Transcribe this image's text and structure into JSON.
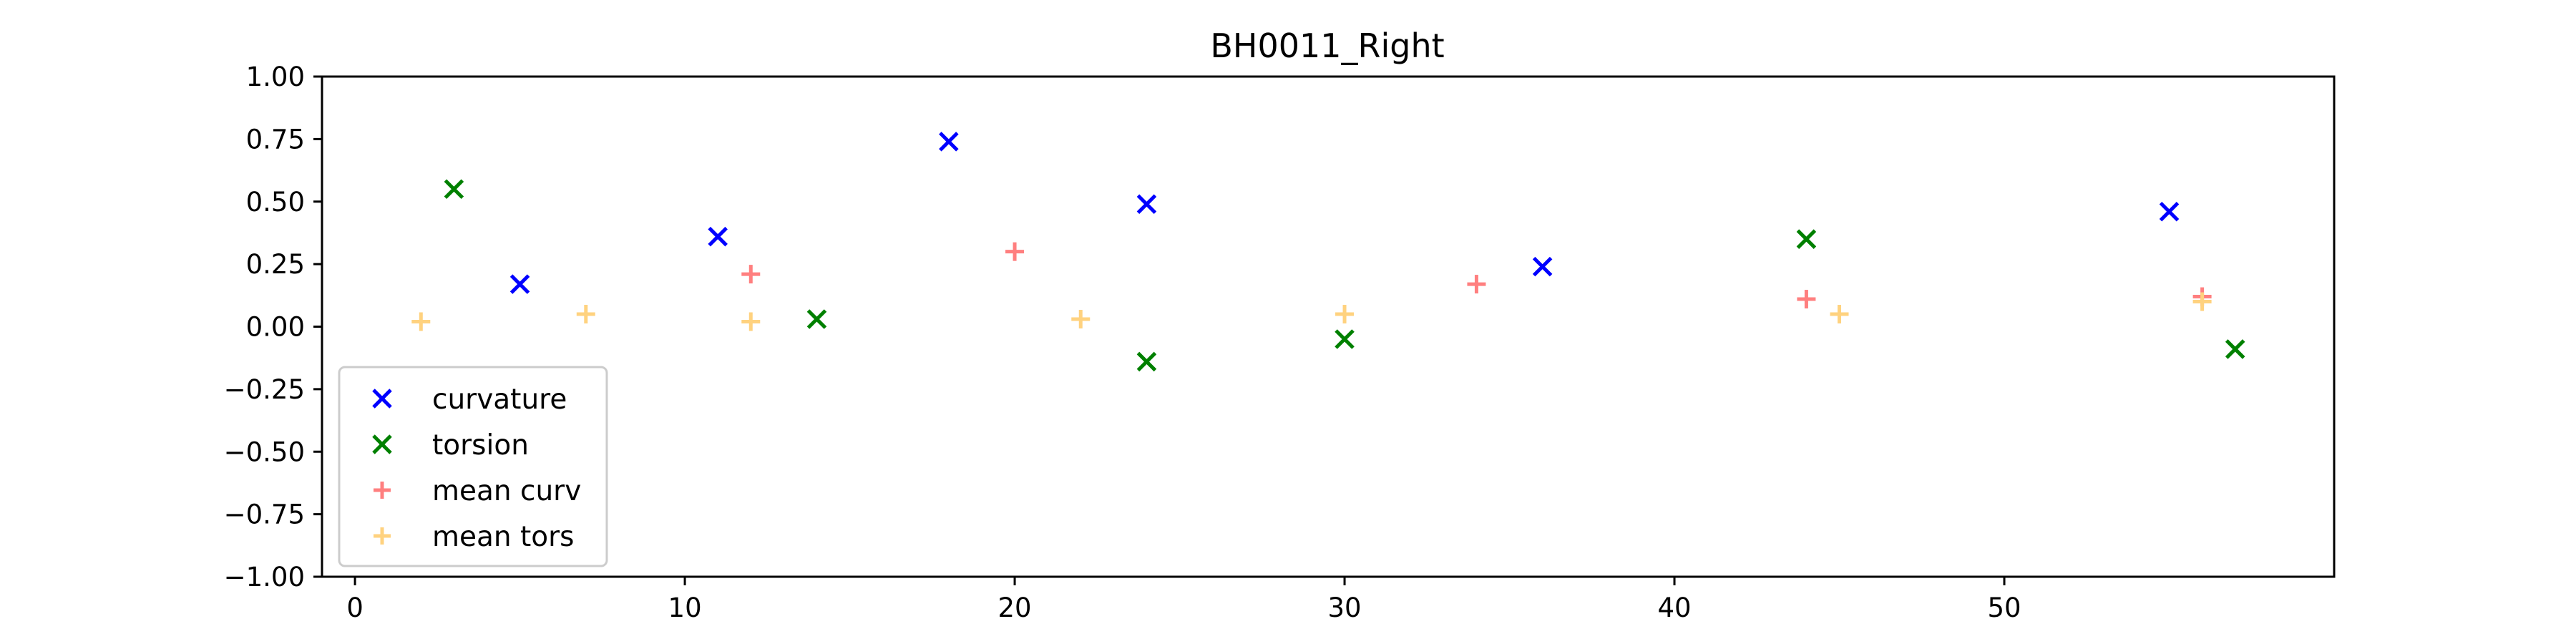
{
  "chart_data": {
    "type": "scatter",
    "title": "BH0011_Right",
    "xlabel": "",
    "ylabel": "",
    "xlim": [
      -1,
      60
    ],
    "ylim": [
      -1.0,
      1.0
    ],
    "x_ticks": [
      0,
      10,
      20,
      30,
      40,
      50
    ],
    "x_tick_labels": [
      "0",
      "10",
      "20",
      "30",
      "40",
      "50"
    ],
    "y_ticks": [
      -1.0,
      -0.75,
      -0.5,
      -0.25,
      0.0,
      0.25,
      0.5,
      0.75,
      1.0
    ],
    "y_tick_labels": [
      "−1.00",
      "−0.75",
      "−0.50",
      "−0.25",
      "0.00",
      "0.25",
      "0.50",
      "0.75",
      "1.00"
    ],
    "grid": false,
    "legend_position": "lower-left",
    "series": [
      {
        "name": "curvature",
        "marker": "x",
        "color": "#0000ff",
        "points": [
          {
            "x": 5,
            "y": 0.17
          },
          {
            "x": 11,
            "y": 0.36
          },
          {
            "x": 18,
            "y": 0.74
          },
          {
            "x": 24,
            "y": 0.49
          },
          {
            "x": 36,
            "y": 0.24
          },
          {
            "x": 55,
            "y": 0.46
          }
        ]
      },
      {
        "name": "torsion",
        "marker": "x",
        "color": "#008000",
        "points": [
          {
            "x": 3,
            "y": 0.55
          },
          {
            "x": 14,
            "y": 0.03
          },
          {
            "x": 24,
            "y": -0.14
          },
          {
            "x": 30,
            "y": -0.05
          },
          {
            "x": 44,
            "y": 0.35
          },
          {
            "x": 57,
            "y": -0.09
          }
        ]
      },
      {
        "name": "mean curv",
        "marker": "+",
        "color": "#ff7f7f",
        "points": [
          {
            "x": 12,
            "y": 0.21
          },
          {
            "x": 20,
            "y": 0.3
          },
          {
            "x": 34,
            "y": 0.17
          },
          {
            "x": 44,
            "y": 0.11
          },
          {
            "x": 56,
            "y": 0.12
          }
        ]
      },
      {
        "name": "mean tors",
        "marker": "+",
        "color": "#ffd27f",
        "points": [
          {
            "x": 2,
            "y": 0.02
          },
          {
            "x": 7,
            "y": 0.05
          },
          {
            "x": 12,
            "y": 0.02
          },
          {
            "x": 22,
            "y": 0.03
          },
          {
            "x": 30,
            "y": 0.05
          },
          {
            "x": 45,
            "y": 0.05
          },
          {
            "x": 56,
            "y": 0.1
          }
        ]
      }
    ]
  }
}
